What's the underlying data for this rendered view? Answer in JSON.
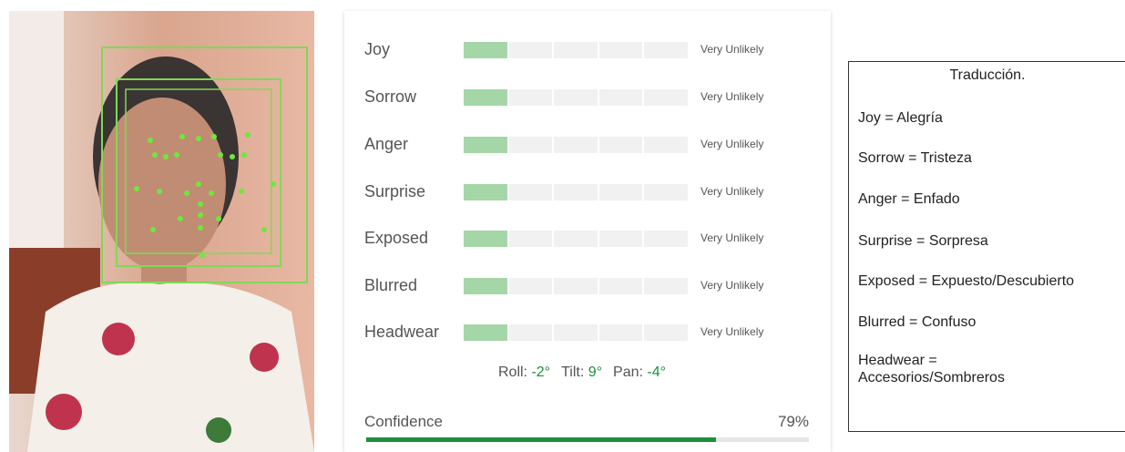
{
  "panel": {
    "rows": [
      {
        "label": "Joy",
        "likelihood": "Very Unlikely"
      },
      {
        "label": "Sorrow",
        "likelihood": "Very Unlikely"
      },
      {
        "label": "Anger",
        "likelihood": "Very Unlikely"
      },
      {
        "label": "Surprise",
        "likelihood": "Very Unlikely"
      },
      {
        "label": "Exposed",
        "likelihood": "Very Unlikely"
      },
      {
        "label": "Blurred",
        "likelihood": "Very Unlikely"
      },
      {
        "label": "Headwear",
        "likelihood": "Very Unlikely"
      }
    ],
    "angles": [
      {
        "label": "Roll:",
        "value": "-2°"
      },
      {
        "label": "Tilt:",
        "value": "9°"
      },
      {
        "label": "Pan:",
        "value": "-4°"
      }
    ],
    "confidence": {
      "label": "Confidence",
      "value": 79,
      "value_label": "79%"
    }
  },
  "translation": {
    "title": "Traducción.",
    "lines": [
      "Joy = Alegría",
      "Sorrow = Tristeza",
      "Anger = Enfado",
      "Surprise = Sorpresa",
      "Exposed = Expuesto/Descubierto",
      "Blurred = Confuso",
      "Headwear = Accesorios/Sombreros"
    ]
  }
}
